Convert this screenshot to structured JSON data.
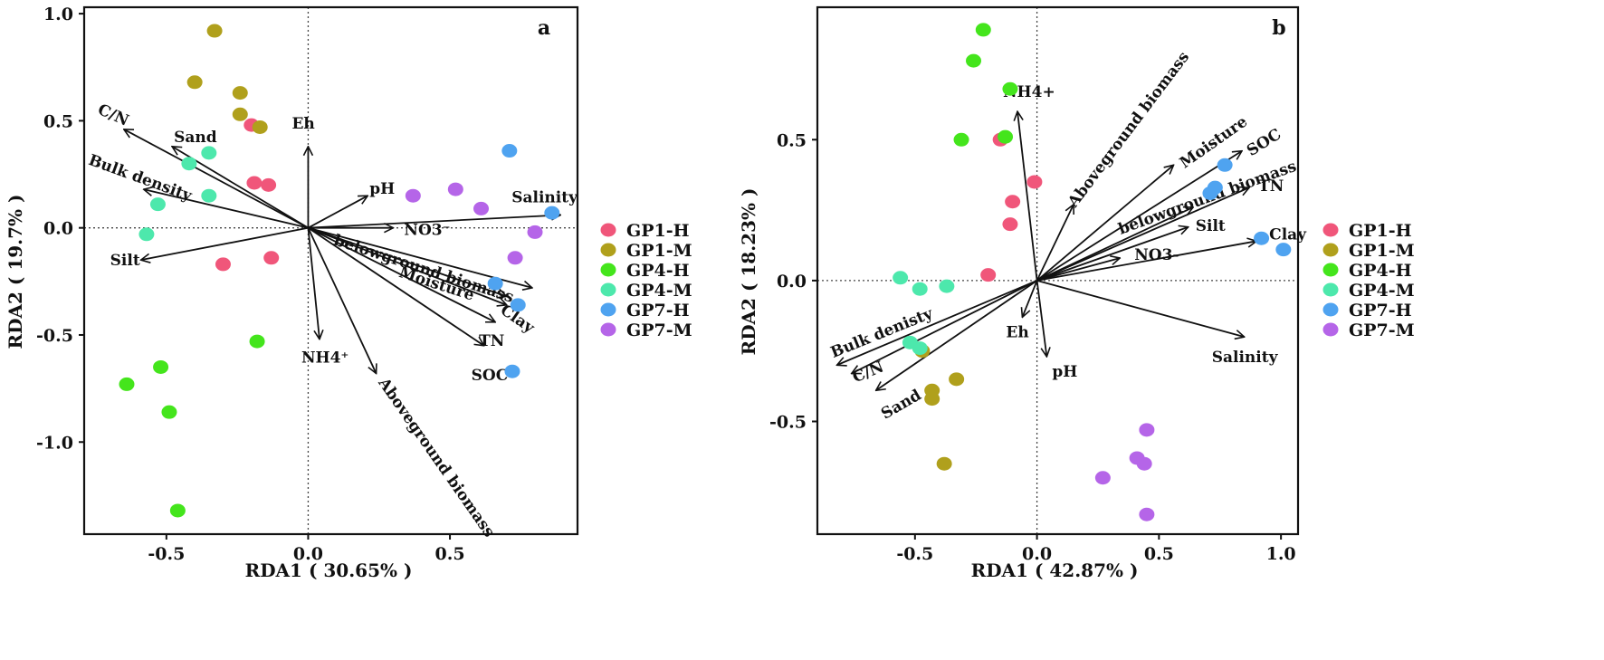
{
  "groups": [
    {
      "name": "GP1-H",
      "color": "#f0567a"
    },
    {
      "name": "GP1-M",
      "color": "#b0a01c"
    },
    {
      "name": "GP4-H",
      "color": "#44e51c"
    },
    {
      "name": "GP4-M",
      "color": "#4de8ac"
    },
    {
      "name": "GP7-H",
      "color": "#4fa3f0"
    },
    {
      "name": "GP7-M",
      "color": "#b565e8"
    }
  ],
  "chart_data": [
    {
      "type": "scatter",
      "id": "a",
      "panel_label": "a",
      "xlabel": "RDA1 ( 30.65% )",
      "ylabel": "RDA2 ( 19.7% )",
      "xlim": [
        -0.79,
        0.95
      ],
      "ylim": [
        -1.43,
        1.03
      ],
      "xticks": [
        -0.5,
        0.0,
        0.5
      ],
      "xtick_labels": [
        "-0.5",
        "0.0",
        "0.5"
      ],
      "yticks": [
        -1.0,
        -0.5,
        0.0,
        0.5,
        1.0
      ],
      "ytick_labels": [
        "-1.0",
        "-0.5",
        "0.0",
        "0.5",
        "1.0"
      ],
      "legend_position": "right",
      "points": [
        {
          "group": 0,
          "x": -0.2,
          "y": 0.48
        },
        {
          "group": 0,
          "x": -0.19,
          "y": 0.21
        },
        {
          "group": 0,
          "x": -0.14,
          "y": 0.2
        },
        {
          "group": 0,
          "x": -0.3,
          "y": -0.17
        },
        {
          "group": 0,
          "x": -0.13,
          "y": -0.14
        },
        {
          "group": 1,
          "x": -0.33,
          "y": 0.92
        },
        {
          "group": 1,
          "x": -0.4,
          "y": 0.68
        },
        {
          "group": 1,
          "x": -0.24,
          "y": 0.63
        },
        {
          "group": 1,
          "x": -0.24,
          "y": 0.53
        },
        {
          "group": 1,
          "x": -0.17,
          "y": 0.47
        },
        {
          "group": 2,
          "x": -0.18,
          "y": -0.53
        },
        {
          "group": 2,
          "x": -0.52,
          "y": -0.65
        },
        {
          "group": 2,
          "x": -0.64,
          "y": -0.73
        },
        {
          "group": 2,
          "x": -0.49,
          "y": -0.86
        },
        {
          "group": 2,
          "x": -0.46,
          "y": -1.32
        },
        {
          "group": 3,
          "x": -0.42,
          "y": 0.3
        },
        {
          "group": 3,
          "x": -0.35,
          "y": 0.35
        },
        {
          "group": 3,
          "x": -0.35,
          "y": 0.15
        },
        {
          "group": 3,
          "x": -0.53,
          "y": 0.11
        },
        {
          "group": 3,
          "x": -0.57,
          "y": -0.03
        },
        {
          "group": 4,
          "x": 0.71,
          "y": 0.36
        },
        {
          "group": 4,
          "x": 0.86,
          "y": 0.07
        },
        {
          "group": 4,
          "x": 0.66,
          "y": -0.26
        },
        {
          "group": 4,
          "x": 0.74,
          "y": -0.36
        },
        {
          "group": 4,
          "x": 0.72,
          "y": -0.67
        },
        {
          "group": 5,
          "x": 0.37,
          "y": 0.15
        },
        {
          "group": 5,
          "x": 0.52,
          "y": 0.18
        },
        {
          "group": 5,
          "x": 0.61,
          "y": 0.09
        },
        {
          "group": 5,
          "x": 0.8,
          "y": -0.02
        },
        {
          "group": 5,
          "x": 0.73,
          "y": -0.14
        }
      ],
      "arrows": [
        {
          "label": "C/N",
          "x": -0.65,
          "y": 0.46
        },
        {
          "label": "Sand",
          "x": -0.48,
          "y": 0.38
        },
        {
          "label": "Bulk density",
          "x": -0.58,
          "y": 0.18
        },
        {
          "label": "Silt",
          "x": -0.59,
          "y": -0.15
        },
        {
          "label": "Eh",
          "x": 0.0,
          "y": 0.38
        },
        {
          "label": "pH",
          "x": 0.21,
          "y": 0.15
        },
        {
          "label": "NO3⁻",
          "x": 0.3,
          "y": 0.0
        },
        {
          "label": "Salinity",
          "x": 0.89,
          "y": 0.06
        },
        {
          "label": "belowground biomass",
          "x": 0.79,
          "y": -0.28
        },
        {
          "label": "Moisture",
          "x": 0.7,
          "y": -0.32
        },
        {
          "label": "Clay",
          "x": 0.7,
          "y": -0.36
        },
        {
          "label": "TN",
          "x": 0.66,
          "y": -0.44
        },
        {
          "label": "SOC",
          "x": 0.62,
          "y": -0.55
        },
        {
          "label": "NH4⁺",
          "x": 0.04,
          "y": -0.52
        },
        {
          "label": "Aboveground biomass",
          "x": 0.24,
          "y": -0.68
        }
      ]
    },
    {
      "type": "scatter",
      "id": "b",
      "panel_label": "b",
      "xlabel": "RDA1 ( 42.87% )",
      "ylabel": "RDA2 ( 18.23% )",
      "xlim": [
        -0.9,
        1.07
      ],
      "ylim": [
        -0.9,
        0.97
      ],
      "xticks": [
        -0.5,
        0.0,
        0.5,
        1.0
      ],
      "xtick_labels": [
        "-0.5",
        "0.0",
        "0.5",
        "1.0"
      ],
      "yticks": [
        -0.5,
        0.0,
        0.5
      ],
      "ytick_labels": [
        "-0.5",
        "0.0",
        "0.5"
      ],
      "legend_position": "right",
      "points": [
        {
          "group": 0,
          "x": -0.15,
          "y": 0.5
        },
        {
          "group": 0,
          "x": -0.01,
          "y": 0.35
        },
        {
          "group": 0,
          "x": -0.1,
          "y": 0.28
        },
        {
          "group": 0,
          "x": -0.11,
          "y": 0.2
        },
        {
          "group": 0,
          "x": -0.2,
          "y": 0.02
        },
        {
          "group": 1,
          "x": -0.47,
          "y": -0.25
        },
        {
          "group": 1,
          "x": -0.33,
          "y": -0.35
        },
        {
          "group": 1,
          "x": -0.43,
          "y": -0.39
        },
        {
          "group": 1,
          "x": -0.43,
          "y": -0.42
        },
        {
          "group": 1,
          "x": -0.38,
          "y": -0.65
        },
        {
          "group": 2,
          "x": -0.22,
          "y": 0.89
        },
        {
          "group": 2,
          "x": -0.26,
          "y": 0.78
        },
        {
          "group": 2,
          "x": -0.11,
          "y": 0.68
        },
        {
          "group": 2,
          "x": -0.13,
          "y": 0.51
        },
        {
          "group": 2,
          "x": -0.31,
          "y": 0.5
        },
        {
          "group": 3,
          "x": -0.56,
          "y": 0.01
        },
        {
          "group": 3,
          "x": -0.48,
          "y": -0.03
        },
        {
          "group": 3,
          "x": -0.37,
          "y": -0.02
        },
        {
          "group": 3,
          "x": -0.52,
          "y": -0.22
        },
        {
          "group": 3,
          "x": -0.48,
          "y": -0.24
        },
        {
          "group": 4,
          "x": 0.77,
          "y": 0.41
        },
        {
          "group": 4,
          "x": 0.73,
          "y": 0.33
        },
        {
          "group": 4,
          "x": 0.71,
          "y": 0.31
        },
        {
          "group": 4,
          "x": 0.92,
          "y": 0.15
        },
        {
          "group": 4,
          "x": 1.01,
          "y": 0.11
        },
        {
          "group": 5,
          "x": 0.45,
          "y": -0.53
        },
        {
          "group": 5,
          "x": 0.41,
          "y": -0.63
        },
        {
          "group": 5,
          "x": 0.44,
          "y": -0.65
        },
        {
          "group": 5,
          "x": 0.27,
          "y": -0.7
        },
        {
          "group": 5,
          "x": 0.45,
          "y": -0.83
        }
      ],
      "arrows": [
        {
          "label": "NH4+",
          "x": -0.08,
          "y": 0.6
        },
        {
          "label": "Aboveground biomass",
          "x": 0.15,
          "y": 0.27
        },
        {
          "label": "Moisture",
          "x": 0.56,
          "y": 0.41
        },
        {
          "label": "SOC",
          "x": 0.84,
          "y": 0.46
        },
        {
          "label": "belowground biomass",
          "x": 0.64,
          "y": 0.26
        },
        {
          "label": "TN",
          "x": 0.87,
          "y": 0.33
        },
        {
          "label": "Silt",
          "x": 0.62,
          "y": 0.19
        },
        {
          "label": "NO3-",
          "x": 0.34,
          "y": 0.08
        },
        {
          "label": "Clay",
          "x": 0.9,
          "y": 0.14
        },
        {
          "label": "Salinity",
          "x": 0.85,
          "y": -0.2
        },
        {
          "label": "Eh",
          "x": -0.06,
          "y": -0.13
        },
        {
          "label": "pH",
          "x": 0.04,
          "y": -0.27
        },
        {
          "label": "Bulk denisty",
          "x": -0.82,
          "y": -0.3
        },
        {
          "label": "C/N",
          "x": -0.76,
          "y": -0.33
        },
        {
          "label": "Sand",
          "x": -0.66,
          "y": -0.39
        }
      ]
    }
  ]
}
